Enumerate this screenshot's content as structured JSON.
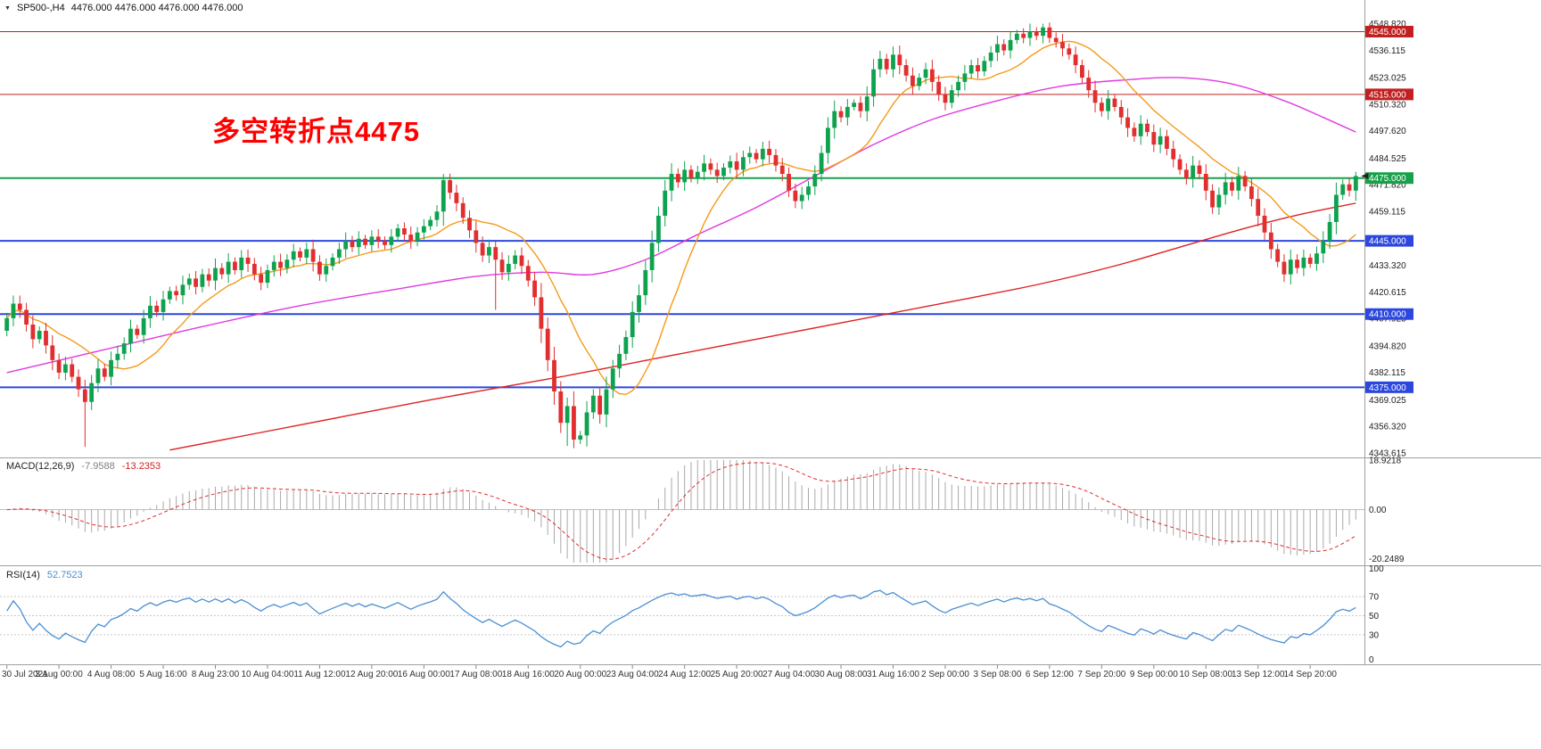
{
  "quote_bar": {
    "symbol": "SP500-,H4",
    "ohlc": "4476.000 4476.000 4476.000 4476.000"
  },
  "annotation": {
    "text": "多空转折点4475",
    "color": "#ff0000"
  },
  "chart_data": [
    {
      "type": "candlestick",
      "title": "SP500- H4",
      "ylim": [
        4341.9,
        4551.6
      ],
      "colors": {
        "up": "#0ea24e",
        "down": "#e12e2e"
      },
      "price_axis": [
        {
          "text": "4548.820",
          "value": 4548.82
        },
        {
          "text": "4536.115",
          "value": 4536.115
        },
        {
          "text": "4523.025",
          "value": 4523.025
        },
        {
          "text": "4510.320",
          "value": 4510.32
        },
        {
          "text": "4497.620",
          "value": 4497.62
        },
        {
          "text": "4484.525",
          "value": 4484.525
        },
        {
          "text": "4471.820",
          "value": 4471.82
        },
        {
          "text": "4459.115",
          "value": 4459.115
        },
        {
          "text": "4433.320",
          "value": 4433.32
        },
        {
          "text": "4420.615",
          "value": 4420.615
        },
        {
          "text": "4407.925",
          "value": 4407.925
        },
        {
          "text": "4394.820",
          "value": 4394.82
        },
        {
          "text": "4382.115",
          "value": 4382.115
        },
        {
          "text": "4369.025",
          "value": 4369.025
        },
        {
          "text": "4356.320",
          "value": 4356.32
        },
        {
          "text": "4343.615",
          "value": 4343.615
        }
      ],
      "levels": [
        {
          "price": 4545,
          "label": "4545.000",
          "color": "#c22020",
          "width": 1
        },
        {
          "price": 4515,
          "label": "4515.000",
          "color": "#c22020",
          "width": 1
        },
        {
          "price": 4475,
          "label": "4475.000",
          "color": "#18a04a",
          "width": 2
        },
        {
          "price": 4445,
          "label": "4445.000",
          "color": "#2c47dd",
          "width": 2
        },
        {
          "price": 4410,
          "label": "4410.000",
          "color": "#2c47dd",
          "width": 2
        },
        {
          "price": 4375,
          "label": "4375.000",
          "color": "#2c47dd",
          "width": 2
        }
      ],
      "last_price_marker": 4476,
      "time_labels": [
        "30 Jul 2021",
        "3 Aug 00:00",
        "4 Aug 08:00",
        "5 Aug 16:00",
        "8 Aug 23:00",
        "10 Aug 04:00",
        "11 Aug 12:00",
        "12 Aug 20:00",
        "16 Aug 00:00",
        "17 Aug 08:00",
        "18 Aug 16:00",
        "20 Aug 00:00",
        "23 Aug 04:00",
        "24 Aug 12:00",
        "25 Aug 20:00",
        "27 Aug 04:00",
        "30 Aug 08:00",
        "31 Aug 16:00",
        "2 Sep 00:00",
        "3 Sep 08:00",
        "6 Sep 12:00",
        "7 Sep 20:00",
        "9 Sep 00:00",
        "10 Sep 08:00",
        "13 Sep 12:00",
        "14 Sep 20:00"
      ],
      "bars_per_label": 8,
      "candles": {
        "first_open": 4402,
        "closes": [
          4408,
          4415,
          4412,
          4405,
          4398,
          4402,
          4395,
          4388,
          4382,
          4386,
          4380,
          4374,
          4368,
          4377,
          4384,
          4380,
          4388,
          4391,
          4396,
          4403,
          4400,
          4408,
          4414,
          4411,
          4417,
          4421,
          4419,
          4424,
          4427,
          4423,
          4429,
          4426,
          4432,
          4429,
          4435,
          4431,
          4437,
          4434,
          4429,
          4425,
          4431,
          4435,
          4432,
          4436,
          4440,
          4437,
          4441,
          4435,
          4429,
          4433,
          4437,
          4441,
          4445,
          4442,
          4446,
          4443,
          4447,
          4445,
          4443,
          4447,
          4451,
          4448,
          4445,
          4449,
          4452,
          4455,
          4459,
          4474,
          4468,
          4463,
          4456,
          4450,
          4444,
          4438,
          4442,
          4436,
          4430,
          4434,
          4438,
          4433,
          4426,
          4418,
          4403,
          4388,
          4373,
          4358,
          4366,
          4350,
          4352,
          4363,
          4371,
          4362,
          4374,
          4384,
          4391,
          4399,
          4411,
          4419,
          4431,
          4444,
          4457,
          4469,
          4477,
          4473,
          4479,
          4475,
          4478,
          4482,
          4479,
          4476,
          4480,
          4483,
          4479,
          4485,
          4487,
          4484,
          4489,
          4486,
          4481,
          4477,
          4469,
          4464,
          4467,
          4471,
          4477,
          4487,
          4499,
          4507,
          4504,
          4509,
          4511,
          4507,
          4514,
          4527,
          4532,
          4527,
          4534,
          4529,
          4524,
          4519,
          4523,
          4527,
          4521,
          4515,
          4511,
          4517,
          4521,
          4525,
          4529,
          4526,
          4531,
          4535,
          4539,
          4536,
          4541,
          4544,
          4542,
          4545,
          4543,
          4547,
          4542,
          4540,
          4537,
          4534,
          4529,
          4523,
          4517,
          4511,
          4507,
          4513,
          4509,
          4504,
          4499,
          4495,
          4501,
          4497,
          4491,
          4495,
          4489,
          4484,
          4479,
          4475,
          4481,
          4477,
          4469,
          4461,
          4467,
          4473,
          4469,
          4476,
          4471,
          4465,
          4457,
          4449,
          4441,
          4435,
          4429,
          4436,
          4432,
          4437,
          4434,
          4439,
          4445,
          4454,
          4467,
          4472,
          4469,
          4476
        ],
        "wick_overrides": [
          {
            "i": 12,
            "l": 4346.5
          },
          {
            "i": 67,
            "h": 4477.0
          },
          {
            "i": 75,
            "l": 4412.0
          },
          {
            "i": 86,
            "l": 4347.0
          },
          {
            "i": 87,
            "l": 4345.9
          },
          {
            "i": 159,
            "h": 4548.8
          },
          {
            "i": 207,
            "h": 4478.0
          }
        ]
      },
      "moving_averages": {
        "fast": {
          "type": "sma",
          "period": 13,
          "color": "#f59a1a"
        },
        "mid": {
          "color": "#e03ae0",
          "anchors": [
            [
              0,
              4382
            ],
            [
              15,
              4393
            ],
            [
              30,
              4404
            ],
            [
              45,
              4414
            ],
            [
              60,
              4422
            ],
            [
              72,
              4428
            ],
            [
              82,
              4430
            ],
            [
              90,
              4429
            ],
            [
              98,
              4436
            ],
            [
              106,
              4448
            ],
            [
              115,
              4461
            ],
            [
              124,
              4476
            ],
            [
              133,
              4491
            ],
            [
              142,
              4503
            ],
            [
              152,
              4512
            ],
            [
              162,
              4519
            ],
            [
              172,
              4522
            ],
            [
              180,
              4523
            ],
            [
              188,
              4520
            ],
            [
              196,
              4512
            ],
            [
              202,
              4504
            ],
            [
              207,
              4497
            ]
          ]
        },
        "slow": {
          "color": "#dd2222",
          "anchors": [
            [
              25,
              4345
            ],
            [
              45,
              4357
            ],
            [
              65,
              4369
            ],
            [
              85,
              4380
            ],
            [
              100,
              4389
            ],
            [
              115,
              4398
            ],
            [
              130,
              4407
            ],
            [
              145,
              4416
            ],
            [
              158,
              4424
            ],
            [
              170,
              4433
            ],
            [
              180,
              4442
            ],
            [
              190,
              4451
            ],
            [
              199,
              4458
            ],
            [
              207,
              4463
            ]
          ]
        }
      }
    },
    {
      "type": "macd-histogram",
      "label": "MACD(12,26,9)",
      "value_main": "-7.9588",
      "value_signal": "-13.2353",
      "params": {
        "fast": 12,
        "slow": 26,
        "signal": 9
      },
      "ylim": [
        -20.2489,
        18.9218
      ],
      "histogram_color": "#a9a9a9",
      "signal_color": "#e02b2b",
      "scale_labels": [
        {
          "text": "18.9218",
          "value": 18.9218
        },
        {
          "text": "0.00",
          "value": 0
        },
        {
          "text": "-20.2489",
          "value": -20.2489
        }
      ]
    },
    {
      "type": "line",
      "label": "RSI(14)",
      "value": "52.7523",
      "period": 14,
      "color": "#4a8fd3",
      "ylim": [
        0,
        100
      ],
      "levels": [
        70,
        50,
        30
      ],
      "scale_labels": [
        100,
        70,
        50,
        30,
        0
      ]
    }
  ]
}
